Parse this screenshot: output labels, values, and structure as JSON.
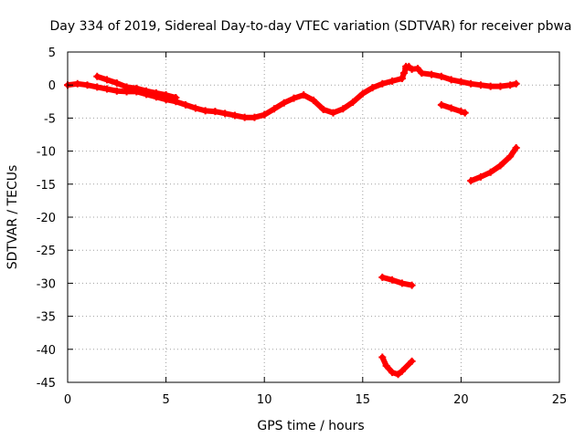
{
  "chart_data": {
    "type": "scatter",
    "title": "Day 334 of 2019, Sidereal Day-to-day VTEC variation (SDTVAR) for receiver pbwa",
    "xlabel": "GPS time / hours",
    "ylabel": "SDTVAR / TECUs",
    "xlim": [
      0,
      25
    ],
    "ylim": [
      -45,
      5
    ],
    "xticks": [
      0,
      5,
      10,
      15,
      20,
      25
    ],
    "yticks": [
      5,
      0,
      -5,
      -10,
      -15,
      -20,
      -25,
      -30,
      -35,
      -40,
      -45
    ],
    "grid": true,
    "series_color": "#ff0000",
    "series": [
      {
        "name": "main-trace",
        "x": [
          0.0,
          0.5,
          1.0,
          1.5,
          2.0,
          2.5,
          3.0,
          3.5,
          4.0,
          4.5,
          5.0,
          5.5,
          6.0,
          6.5,
          7.0,
          7.5,
          8.0,
          8.5,
          9.0,
          9.5,
          10.0,
          10.5,
          11.0,
          11.5,
          12.0,
          12.5,
          13.0,
          13.5,
          14.0,
          14.5,
          15.0,
          15.5,
          16.0,
          16.5,
          17.0
        ],
        "y": [
          0.0,
          0.2,
          0.0,
          -0.3,
          -0.6,
          -0.9,
          -1.0,
          -1.0,
          -1.4,
          -1.8,
          -2.2,
          -2.5,
          -3.0,
          -3.5,
          -3.9,
          -4.0,
          -4.3,
          -4.6,
          -4.9,
          -4.9,
          -4.5,
          -3.6,
          -2.7,
          -2.0,
          -1.5,
          -2.3,
          -3.7,
          -4.2,
          -3.6,
          -2.6,
          -1.3,
          -0.4,
          0.2,
          0.6,
          1.0
        ]
      },
      {
        "name": "upper-band",
        "x": [
          1.5,
          2.0,
          2.5,
          3.0,
          3.5,
          4.0,
          4.5,
          5.0,
          5.5
        ],
        "y": [
          1.3,
          0.8,
          0.3,
          -0.3,
          -0.5,
          -0.9,
          -1.2,
          -1.5,
          -1.9
        ]
      },
      {
        "name": "post-gap-trace",
        "x": [
          17.2,
          17.5,
          17.8,
          18.0,
          18.5,
          19.0,
          19.5,
          20.0,
          20.5,
          21.0,
          21.5,
          22.0,
          22.5,
          22.8
        ],
        "y": [
          2.8,
          2.4,
          2.5,
          1.8,
          1.6,
          1.3,
          0.8,
          0.5,
          0.2,
          0.0,
          -0.2,
          -0.2,
          0.0,
          0.2
        ]
      },
      {
        "name": "spike",
        "x": [
          17.0,
          17.1,
          17.2,
          17.35
        ],
        "y": [
          1.0,
          1.8,
          2.5,
          2.8
        ]
      },
      {
        "name": "branch-mid",
        "x": [
          19.0,
          19.5,
          20.0,
          20.2
        ],
        "y": [
          -3.0,
          -3.5,
          -4.0,
          -4.2
        ]
      },
      {
        "name": "branch-low",
        "x": [
          20.5,
          21.0,
          21.5,
          22.0,
          22.5,
          22.8
        ],
        "y": [
          -14.5,
          -13.9,
          -13.2,
          -12.2,
          -10.8,
          -9.5
        ]
      },
      {
        "name": "segment-30",
        "x": [
          16.0,
          16.5,
          17.0,
          17.5
        ],
        "y": [
          -29.1,
          -29.5,
          -30.0,
          -30.3
        ]
      },
      {
        "name": "segment-43",
        "x": [
          16.0,
          16.2,
          16.5,
          16.8,
          17.0,
          17.5
        ],
        "y": [
          -41.2,
          -42.5,
          -43.5,
          -43.8,
          -43.3,
          -41.8
        ]
      }
    ]
  }
}
